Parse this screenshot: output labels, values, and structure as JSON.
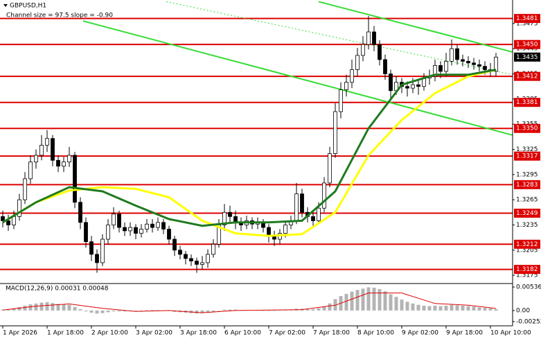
{
  "chart_data": {
    "type": "candlestick",
    "title": "GBPUSD,H1",
    "subtitle": "Channel size = 97.5 slope = -0.90",
    "xlim": [
      -0.5,
      92
    ],
    "xticks": [
      {
        "value": 0,
        "label": "1 Apr 2026"
      },
      {
        "value": 8,
        "label": "1 Apr 18:00"
      },
      {
        "value": 16,
        "label": "2 Apr 10:00"
      },
      {
        "value": 24,
        "label": "3 Apr 02:00"
      },
      {
        "value": 32,
        "label": "3 Apr 18:00"
      },
      {
        "value": 40,
        "label": "6 Apr 10:00"
      },
      {
        "value": 48,
        "label": "7 Apr 02:00"
      },
      {
        "value": 56,
        "label": "7 Apr 18:00"
      },
      {
        "value": 64,
        "label": "8 Apr 10:00"
      },
      {
        "value": 72,
        "label": "9 Apr 02:00"
      },
      {
        "value": 80,
        "label": "9 Apr 18:00"
      },
      {
        "value": 88,
        "label": "10 Apr 10:00"
      }
    ],
    "ylim": [
      1.3166,
      1.3503
    ],
    "yticks": [
      1.3175,
      1.3205,
      1.3235,
      1.3265,
      1.3295,
      1.3325,
      1.3355,
      1.3385,
      1.3415,
      1.3445,
      1.3475
    ],
    "up_color": "#ffffff",
    "down_color": "#000000",
    "open": [
      1.3245,
      1.324,
      1.3235,
      1.3245,
      1.3265,
      1.329,
      1.331,
      1.3318,
      1.333,
      1.3338,
      1.3312,
      1.3305,
      1.331,
      1.3318,
      1.3262,
      1.3238,
      1.3215,
      1.32,
      1.319,
      1.3218,
      1.3235,
      1.3248,
      1.3232,
      1.3228,
      1.3232,
      1.3225,
      1.323,
      1.3236,
      1.3232,
      1.3238,
      1.323,
      1.3218,
      1.3205,
      1.32,
      1.3195,
      1.3192,
      1.3188,
      1.319,
      1.32,
      1.3212,
      1.3235,
      1.325,
      1.3245,
      1.3238,
      1.3235,
      1.324,
      1.3236,
      1.3238,
      1.3232,
      1.3222,
      1.3218,
      1.3225,
      1.3235,
      1.324,
      1.3272,
      1.325,
      1.3245,
      1.324,
      1.3255,
      1.3285,
      1.332,
      1.337,
      1.3396,
      1.3405,
      1.342,
      1.3437,
      1.345,
      1.3465,
      1.345,
      1.3432,
      1.3415,
      1.3395,
      1.3405,
      1.34,
      1.3398,
      1.3402,
      1.34,
      1.341,
      1.3412,
      1.3425,
      1.3418,
      1.343,
      1.3445,
      1.3432,
      1.343,
      1.3428,
      1.3426,
      1.3424,
      1.342,
      1.3418
    ],
    "high": [
      1.3252,
      1.3247,
      1.3252,
      1.3272,
      1.3298,
      1.3318,
      1.3325,
      1.3342,
      1.3348,
      1.3342,
      1.3318,
      1.3316,
      1.3328,
      1.3322,
      1.3268,
      1.3244,
      1.3222,
      1.3206,
      1.3224,
      1.3242,
      1.3256,
      1.3252,
      1.3238,
      1.3238,
      1.3236,
      1.3236,
      1.3242,
      1.3242,
      1.3244,
      1.3242,
      1.3234,
      1.3222,
      1.321,
      1.3204,
      1.32,
      1.3196,
      1.3198,
      1.3206,
      1.3218,
      1.3242,
      1.326,
      1.3258,
      1.3252,
      1.3244,
      1.3246,
      1.3244,
      1.3244,
      1.3242,
      1.3236,
      1.3228,
      1.323,
      1.324,
      1.3246,
      1.3285,
      1.3278,
      1.3256,
      1.325,
      1.3262,
      1.3292,
      1.3328,
      1.338,
      1.3405,
      1.3414,
      1.3432,
      1.3446,
      1.346,
      1.3484,
      1.3472,
      1.3455,
      1.3438,
      1.342,
      1.3412,
      1.341,
      1.3406,
      1.341,
      1.3408,
      1.3416,
      1.342,
      1.3432,
      1.343,
      1.344,
      1.3456,
      1.345,
      1.3438,
      1.3436,
      1.3434,
      1.3432,
      1.343,
      1.3428,
      1.344
    ],
    "low": [
      1.3232,
      1.3228,
      1.323,
      1.324,
      1.326,
      1.3284,
      1.3302,
      1.3312,
      1.3322,
      1.3305,
      1.3298,
      1.3298,
      1.3304,
      1.3255,
      1.323,
      1.3208,
      1.3192,
      1.3178,
      1.3186,
      1.3212,
      1.323,
      1.3226,
      1.3222,
      1.3222,
      1.3218,
      1.322,
      1.3226,
      1.3226,
      1.3228,
      1.3224,
      1.3212,
      1.3198,
      1.3194,
      1.3188,
      1.3186,
      1.3178,
      1.3182,
      1.3184,
      1.3196,
      1.3208,
      1.3228,
      1.3238,
      1.323,
      1.3228,
      1.323,
      1.323,
      1.323,
      1.3226,
      1.3214,
      1.321,
      1.3212,
      1.322,
      1.323,
      1.3236,
      1.3244,
      1.3238,
      1.3234,
      1.3236,
      1.325,
      1.328,
      1.3315,
      1.3362,
      1.3388,
      1.3398,
      1.3412,
      1.343,
      1.3444,
      1.3442,
      1.3425,
      1.3408,
      1.3386,
      1.339,
      1.3392,
      1.3388,
      1.3392,
      1.339,
      1.3395,
      1.3402,
      1.3406,
      1.341,
      1.3412,
      1.3425,
      1.3426,
      1.3424,
      1.3422,
      1.342,
      1.3418,
      1.3414,
      1.3412,
      1.3412
    ],
    "close": [
      1.324,
      1.3235,
      1.3245,
      1.3265,
      1.329,
      1.331,
      1.3318,
      1.333,
      1.3338,
      1.3312,
      1.3305,
      1.331,
      1.3318,
      1.3262,
      1.3238,
      1.3215,
      1.32,
      1.319,
      1.3218,
      1.3235,
      1.3248,
      1.3232,
      1.3228,
      1.3232,
      1.3225,
      1.323,
      1.3236,
      1.3232,
      1.3238,
      1.323,
      1.3218,
      1.3205,
      1.32,
      1.3195,
      1.3192,
      1.3188,
      1.319,
      1.32,
      1.3212,
      1.3235,
      1.325,
      1.3245,
      1.3238,
      1.3235,
      1.324,
      1.3236,
      1.3238,
      1.3232,
      1.3222,
      1.3218,
      1.3225,
      1.3235,
      1.324,
      1.3272,
      1.325,
      1.3245,
      1.324,
      1.3255,
      1.3285,
      1.332,
      1.337,
      1.3396,
      1.3405,
      1.342,
      1.3437,
      1.345,
      1.3465,
      1.345,
      1.3432,
      1.3415,
      1.3395,
      1.3405,
      1.34,
      1.3398,
      1.3402,
      1.34,
      1.341,
      1.3412,
      1.3425,
      1.3418,
      1.343,
      1.3445,
      1.3432,
      1.343,
      1.3428,
      1.3426,
      1.3424,
      1.342,
      1.3418,
      1.3435
    ],
    "moving_averages": [
      {
        "color": "#ffff00",
        "x": [
          0,
          6,
          12,
          18,
          24,
          30,
          36,
          42,
          48,
          54,
          60,
          66,
          72,
          78,
          84,
          89
        ],
        "values": [
          1.3238,
          1.3262,
          1.3276,
          1.328,
          1.3278,
          1.3268,
          1.324,
          1.3225,
          1.3222,
          1.3224,
          1.325,
          1.3318,
          1.336,
          1.3392,
          1.3412,
          1.342
        ]
      },
      {
        "color": "#1f7a1f",
        "x": [
          0,
          6,
          12,
          18,
          24,
          30,
          36,
          42,
          48,
          54,
          60,
          66,
          72,
          78,
          84,
          89
        ],
        "values": [
          1.3238,
          1.3262,
          1.328,
          1.3275,
          1.3258,
          1.3242,
          1.3234,
          1.3238,
          1.3238,
          1.324,
          1.3275,
          1.335,
          1.3402,
          1.3414,
          1.3414,
          1.342
        ]
      }
    ],
    "channels": [
      {
        "color": "#33dd33",
        "style": "solid",
        "x": [
          14.5,
          92
        ],
        "y": [
          1.3478,
          1.3342
        ]
      },
      {
        "color": "#33dd33",
        "style": "solid",
        "x": [
          57,
          92
        ],
        "y": [
          1.3501,
          1.3441
        ]
      },
      {
        "color": "#33dd33",
        "style": "dotted",
        "x": [
          29.5,
          92
        ],
        "y": [
          1.3501,
          1.3414
        ]
      }
    ],
    "level_color": "#dd0000",
    "levels": [
      1.3481,
      {
        "value": 1.345,
        "label": "1.3450"
      },
      1.3412,
      1.3381,
      {
        "value": 1.335,
        "label": "1.3350"
      },
      1.3317,
      1.3283,
      1.3249,
      1.3212,
      1.3182
    ],
    "current_price": 1.3435,
    "macd": {
      "label": "MACD(12,26,9) 0.00031 0.00048",
      "ylim": [
        -0.0035,
        0.006
      ],
      "yticks": [
        0.00536,
        {
          "value": 0,
          "label": "0.00"
        },
        -0.00252
      ],
      "histogram_color": "#b4b4b4",
      "histogram": [
        0.0002,
        0.0003,
        0.0005,
        0.0008,
        0.0011,
        0.0014,
        0.0016,
        0.0018,
        0.0019,
        0.0017,
        0.0015,
        0.0014,
        0.0013,
        0.0008,
        0.0003,
        -0.0002,
        -0.0005,
        -0.0007,
        -0.0006,
        -0.0004,
        -0.0002,
        -0.0002,
        -0.0002,
        -0.0001,
        -0.0001,
        0,
        0.0001,
        0.0001,
        0.0001,
        0,
        -0.0001,
        -0.0003,
        -0.0004,
        -0.0005,
        -0.0006,
        -0.0007,
        -0.0006,
        -0.0005,
        -0.0003,
        0,
        0.0002,
        0.0002,
        0.0002,
        0.0001,
        0.0001,
        0.0001,
        0.0001,
        0,
        -0.0001,
        -0.0001,
        0,
        0.0001,
        0.0001,
        0.0004,
        0.0004,
        0.0003,
        0.0003,
        0.0005,
        0.0009,
        0.0016,
        0.0026,
        0.0033,
        0.0038,
        0.0043,
        0.0047,
        0.005,
        0.0053,
        0.0052,
        0.0049,
        0.0044,
        0.0037,
        0.0031,
        0.0025,
        0.002,
        0.0016,
        0.0013,
        0.0011,
        0.001,
        0.0011,
        0.001,
        0.0011,
        0.0013,
        0.0012,
        0.0011,
        0.001,
        0.0009,
        0.0007,
        0.0006,
        0.0005,
        0.00031
      ],
      "signal": {
        "color": "#dd0000",
        "x": [
          0,
          6,
          12,
          18,
          24,
          30,
          36,
          42,
          48,
          54,
          60,
          66,
          72,
          78,
          84,
          89
        ],
        "values": [
          0.0001,
          0.001,
          0.0015,
          0.0005,
          -0.0002,
          0,
          -0.0005,
          0,
          0.0001,
          0.0002,
          0.0012,
          0.004,
          0.004,
          0.0016,
          0.0012,
          0.00048
        ]
      }
    }
  }
}
